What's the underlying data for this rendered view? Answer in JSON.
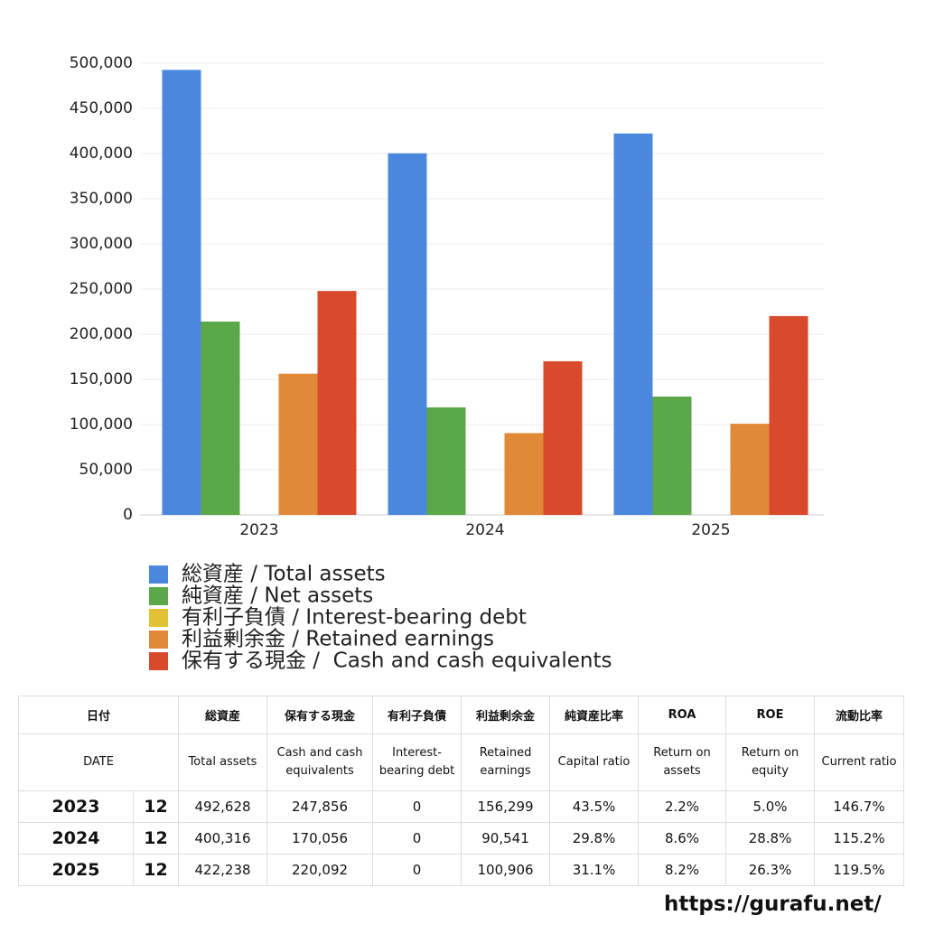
{
  "chart_data": {
    "type": "bar",
    "categories": [
      "2023",
      "2024",
      "2025"
    ],
    "series": [
      {
        "name": "総資産 / Total assets",
        "color": "#4a88de",
        "values": [
          492628,
          400316,
          422238
        ]
      },
      {
        "name": "純資産 / Net assets",
        "color": "#5aa848",
        "values": [
          214000,
          119000,
          131000
        ]
      },
      {
        "name": "有利子負債 / Interest-bearing debt",
        "color": "#e2c235",
        "values": [
          0,
          0,
          0
        ]
      },
      {
        "name": "利益剰余金 / Retained earnings",
        "color": "#e08a38",
        "values": [
          156299,
          90541,
          100906
        ]
      },
      {
        "name": "保有する現金 /  Cash and cash equivalents",
        "color": "#d9492b",
        "values": [
          247856,
          170056,
          220092
        ]
      }
    ],
    "ylim": [
      0,
      500000
    ],
    "yticks": [
      0,
      {
        "value": 50000,
        "label": "50,000"
      },
      {
        "value": 100000,
        "label": "100,000"
      },
      {
        "value": 150000,
        "label": "150,000"
      },
      {
        "value": 200000,
        "label": "200,000"
      },
      {
        "value": 250000,
        "label": "250,000"
      },
      {
        "value": 300000,
        "label": "300,000"
      },
      {
        "value": 350000,
        "label": "350,000"
      },
      {
        "value": 400000,
        "label": "400,000"
      },
      {
        "value": 450000,
        "label": "450,000"
      },
      {
        "value": 500000,
        "label": "500,000"
      }
    ],
    "grid": true
  },
  "table": {
    "header": [
      "日付",
      "総資産",
      "保有する現金",
      "有利子負債",
      "利益剰余金",
      "純資産比率",
      "ROA",
      "ROE",
      "流動比率"
    ],
    "subheader": [
      "DATE",
      "Total assets",
      "Cash and cash equivalents",
      "Interest-bearing debt",
      "Retained earnings",
      "Capital ratio",
      "Return on assets",
      "Return on equity",
      "Current ratio"
    ],
    "rows": [
      [
        "2023",
        "12",
        "492,628",
        "247,856",
        "0",
        "156,299",
        "43.5%",
        "2.2%",
        "5.0%",
        "146.7%"
      ],
      [
        "2024",
        "12",
        "400,316",
        "170,056",
        "0",
        "90,541",
        "29.8%",
        "8.6%",
        "28.8%",
        "115.2%"
      ],
      [
        "2025",
        "12",
        "422,238",
        "220,092",
        "0",
        "100,906",
        "31.1%",
        "8.2%",
        "26.3%",
        "119.5%"
      ]
    ]
  },
  "footer": "https://gurafu.net/"
}
